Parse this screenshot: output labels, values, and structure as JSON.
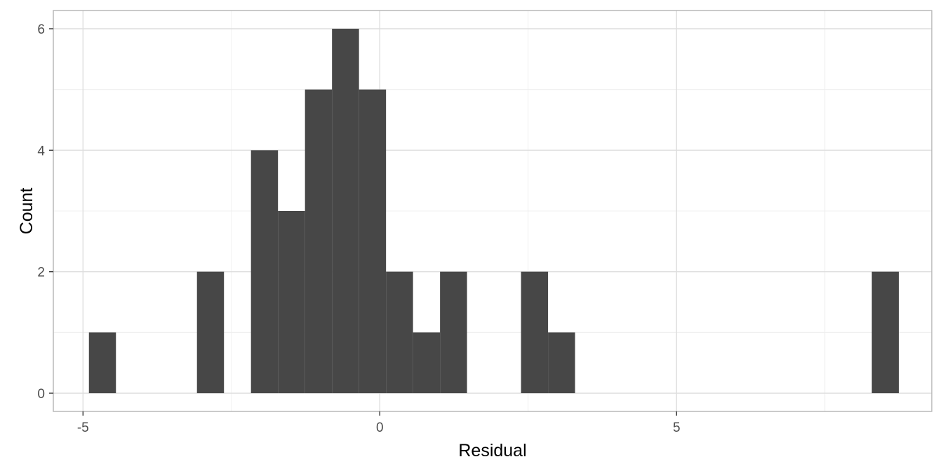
{
  "chart_data": {
    "type": "bar",
    "subtype": "histogram",
    "xlabel": "Residual",
    "ylabel": "Count",
    "xlim": [
      -5.5,
      9.3
    ],
    "ylim": [
      -0.3,
      6.3
    ],
    "x_ticks": [
      -5,
      0,
      5
    ],
    "x_tick_labels": [
      "-5",
      "0",
      "5"
    ],
    "y_ticks": [
      0,
      2,
      4,
      6
    ],
    "y_tick_labels": [
      "0",
      "2",
      "4",
      "6"
    ],
    "grid": true,
    "bin_width": 0.455,
    "bars": [
      {
        "x_start": -4.9,
        "x_end": -4.445,
        "count": 1
      },
      {
        "x_start": -3.08,
        "x_end": -2.625,
        "count": 2
      },
      {
        "x_start": -2.17,
        "x_end": -1.715,
        "count": 4
      },
      {
        "x_start": -1.715,
        "x_end": -1.26,
        "count": 3
      },
      {
        "x_start": -1.26,
        "x_end": -0.805,
        "count": 5
      },
      {
        "x_start": -0.805,
        "x_end": -0.35,
        "count": 6
      },
      {
        "x_start": -0.35,
        "x_end": 0.105,
        "count": 5
      },
      {
        "x_start": 0.105,
        "x_end": 0.56,
        "count": 2
      },
      {
        "x_start": 0.56,
        "x_end": 1.015,
        "count": 1
      },
      {
        "x_start": 1.015,
        "x_end": 1.47,
        "count": 2
      },
      {
        "x_start": 2.38,
        "x_end": 2.835,
        "count": 2
      },
      {
        "x_start": 2.835,
        "x_end": 3.29,
        "count": 1
      },
      {
        "x_start": 8.29,
        "x_end": 8.745,
        "count": 2
      }
    ],
    "colors": {
      "bar": "#474747",
      "panel_border": "#b3b3b3",
      "grid_major": "#dedede",
      "grid_minor": "#ececec",
      "tick_label": "#4d4d4d",
      "axis_title": "#000000"
    }
  }
}
